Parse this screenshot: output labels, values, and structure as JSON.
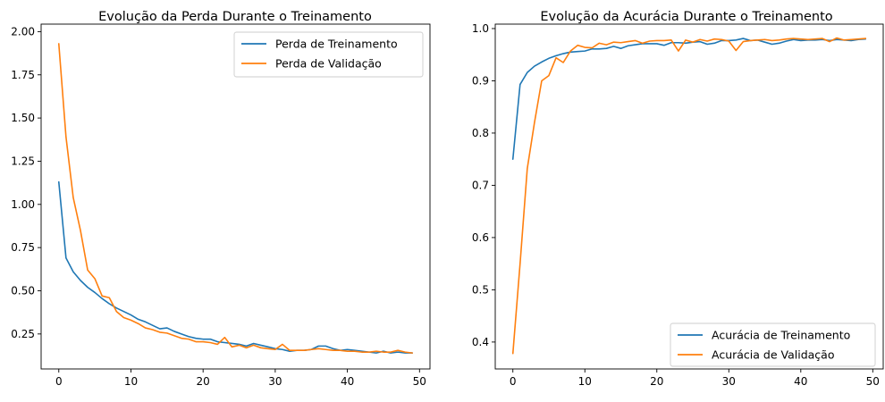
{
  "chart_data": [
    {
      "type": "line",
      "title": "Evolução da Perda Durante o Treinamento",
      "xlabel": "",
      "ylabel": "",
      "xlim": [
        -2.45,
        51.45
      ],
      "ylim": [
        0.0475,
        2.0435
      ],
      "xticks": [
        0,
        10,
        20,
        30,
        40,
        50
      ],
      "yticks": [
        0.25,
        0.5,
        0.75,
        1.0,
        1.25,
        1.5,
        1.75,
        2.0
      ],
      "ytick_labels": [
        "0.25",
        "0.50",
        "0.75",
        "1.00",
        "1.25",
        "1.50",
        "1.75",
        "2.00"
      ],
      "grid": false,
      "legend_position": "upper right",
      "series": [
        {
          "name": "Perda de Treinamento",
          "color": "#1f77b4",
          "values": [
            1.13,
            0.69,
            0.61,
            0.56,
            0.52,
            0.49,
            0.455,
            0.425,
            0.4,
            0.38,
            0.36,
            0.335,
            0.32,
            0.3,
            0.28,
            0.285,
            0.265,
            0.25,
            0.235,
            0.225,
            0.22,
            0.22,
            0.205,
            0.2,
            0.195,
            0.19,
            0.18,
            0.195,
            0.185,
            0.175,
            0.165,
            0.16,
            0.15,
            0.155,
            0.155,
            0.16,
            0.18,
            0.18,
            0.165,
            0.155,
            0.16,
            0.155,
            0.15,
            0.145,
            0.14,
            0.15,
            0.14,
            0.145,
            0.14,
            0.14
          ]
        },
        {
          "name": "Perda de Validação",
          "color": "#ff7f0e",
          "values": [
            1.93,
            1.39,
            1.04,
            0.85,
            0.62,
            0.57,
            0.47,
            0.46,
            0.38,
            0.345,
            0.33,
            0.31,
            0.285,
            0.275,
            0.26,
            0.255,
            0.24,
            0.225,
            0.22,
            0.205,
            0.205,
            0.2,
            0.19,
            0.23,
            0.175,
            0.185,
            0.17,
            0.185,
            0.17,
            0.165,
            0.16,
            0.19,
            0.155,
            0.155,
            0.155,
            0.16,
            0.165,
            0.16,
            0.155,
            0.155,
            0.15,
            0.15,
            0.145,
            0.145,
            0.15,
            0.145,
            0.145,
            0.155,
            0.145,
            0.14
          ]
        }
      ]
    },
    {
      "type": "line",
      "title": "Evolução da Acurácia Durante o Treinamento",
      "xlabel": "",
      "ylabel": "",
      "xlim": [
        -2.45,
        51.45
      ],
      "ylim": [
        0.3485,
        1.0085
      ],
      "xticks": [
        0,
        10,
        20,
        30,
        40,
        50
      ],
      "yticks": [
        0.4,
        0.5,
        0.6,
        0.7,
        0.8,
        0.9,
        1.0
      ],
      "ytick_labels": [
        "0.4",
        "0.5",
        "0.6",
        "0.7",
        "0.8",
        "0.9",
        "1.0"
      ],
      "grid": false,
      "legend_position": "lower right",
      "series": [
        {
          "name": "Acurácia de Treinamento",
          "color": "#1f77b4",
          "values": [
            0.75,
            0.893,
            0.916,
            0.928,
            0.936,
            0.943,
            0.948,
            0.952,
            0.955,
            0.956,
            0.957,
            0.961,
            0.961,
            0.962,
            0.966,
            0.962,
            0.967,
            0.969,
            0.971,
            0.971,
            0.971,
            0.968,
            0.973,
            0.973,
            0.972,
            0.974,
            0.975,
            0.97,
            0.972,
            0.977,
            0.977,
            0.978,
            0.981,
            0.977,
            0.978,
            0.974,
            0.97,
            0.972,
            0.976,
            0.979,
            0.977,
            0.978,
            0.978,
            0.979,
            0.977,
            0.979,
            0.978,
            0.977,
            0.979,
            0.98
          ]
        },
        {
          "name": "Acurácia de Validação",
          "color": "#ff7f0e",
          "values": [
            0.378,
            0.55,
            0.732,
            0.82,
            0.9,
            0.91,
            0.944,
            0.935,
            0.957,
            0.968,
            0.964,
            0.963,
            0.972,
            0.969,
            0.974,
            0.973,
            0.975,
            0.977,
            0.972,
            0.976,
            0.977,
            0.977,
            0.978,
            0.957,
            0.978,
            0.974,
            0.979,
            0.976,
            0.98,
            0.979,
            0.976,
            0.958,
            0.975,
            0.977,
            0.978,
            0.979,
            0.977,
            0.978,
            0.98,
            0.981,
            0.98,
            0.979,
            0.98,
            0.981,
            0.975,
            0.982,
            0.978,
            0.979,
            0.98,
            0.981
          ]
        }
      ]
    }
  ]
}
